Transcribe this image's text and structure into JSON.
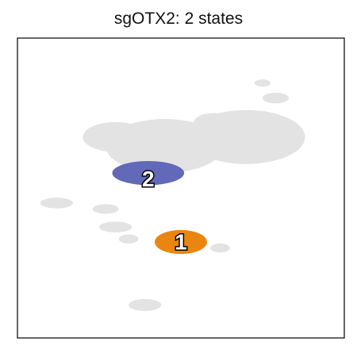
{
  "chart_data": {
    "type": "scatter",
    "title": "sgOTX2: 2 states",
    "xlabel": "",
    "ylabel": "",
    "xlim": [
      0,
      100
    ],
    "ylim": [
      0,
      100
    ],
    "grid": false,
    "background_color": "#e3e3e3",
    "background_regions": [
      {
        "cx": 45,
        "cy": 64,
        "rx": 18,
        "ry": 9
      },
      {
        "cx": 30,
        "cy": 67,
        "rx": 10,
        "ry": 5
      },
      {
        "cx": 70,
        "cy": 67,
        "rx": 18,
        "ry": 9
      },
      {
        "cx": 60,
        "cy": 72,
        "rx": 6,
        "ry": 3
      },
      {
        "cx": 79,
        "cy": 80,
        "rx": 4,
        "ry": 1.8
      },
      {
        "cx": 75,
        "cy": 85,
        "rx": 2.5,
        "ry": 1.2
      },
      {
        "cx": 12,
        "cy": 45,
        "rx": 5,
        "ry": 1.8
      },
      {
        "cx": 27,
        "cy": 43,
        "rx": 4,
        "ry": 1.6
      },
      {
        "cx": 30,
        "cy": 37,
        "rx": 5,
        "ry": 1.8
      },
      {
        "cx": 34,
        "cy": 33,
        "rx": 3,
        "ry": 1.5
      },
      {
        "cx": 62,
        "cy": 30,
        "rx": 3,
        "ry": 1.5
      },
      {
        "cx": 39,
        "cy": 11,
        "rx": 5,
        "ry": 2
      }
    ],
    "states": [
      {
        "label": "2",
        "color": "#6169b8",
        "cx": 40,
        "cy": 55,
        "rx": 11,
        "ry": 4,
        "label_x": 40,
        "label_y": 53
      },
      {
        "label": "1",
        "color": "#ea8610",
        "cx": 50,
        "cy": 32,
        "rx": 8,
        "ry": 4,
        "label_x": 50,
        "label_y": 32
      }
    ]
  }
}
